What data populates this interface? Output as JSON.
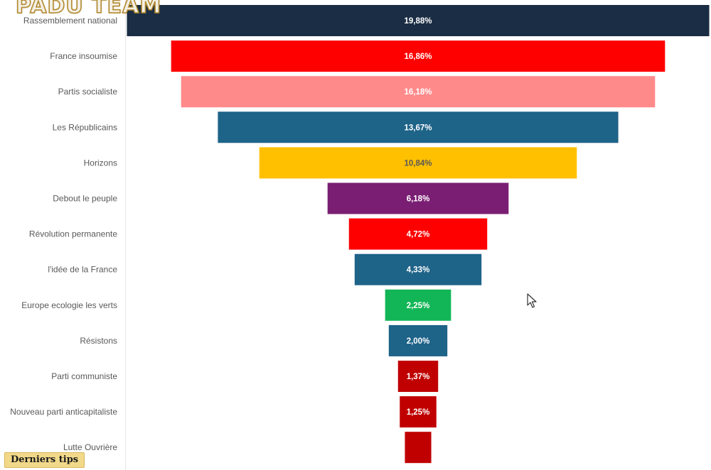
{
  "overlay": {
    "logo_text": "PADU TEAM",
    "badge_text": "Derniers tips"
  },
  "chart_data": {
    "type": "bar",
    "orientation": "horizontal-centered-funnel",
    "categories": [
      "Rassemblement national",
      "France insoumise",
      "Partis socialiste",
      "Les Républicains",
      "Horizons",
      "Debout le peuple",
      "Révolution permanente",
      "l'idée de la France",
      "Europe ecologie les verts",
      "Résistons",
      "Parti communiste",
      "Nouveau parti anticapitaliste",
      "Lutte Ouvrière"
    ],
    "values": [
      19.88,
      16.86,
      16.18,
      13.67,
      10.84,
      6.18,
      4.72,
      4.33,
      2.25,
      2.0,
      1.37,
      1.25,
      0.9
    ],
    "value_labels": [
      "19,88%",
      "16,86%",
      "16,18%",
      "13,67%",
      "10,84%",
      "6,18%",
      "4,72%",
      "4,33%",
      "2,25%",
      "2,00%",
      "1,37%",
      "1,25%",
      ""
    ],
    "colors": [
      "#1b2d44",
      "#fe0000",
      "#ff8a8a",
      "#1e6388",
      "#ffc000",
      "#7a1e73",
      "#fe0000",
      "#1e6388",
      "#12b656",
      "#1e6388",
      "#c00000",
      "#c00000",
      "#c00000"
    ],
    "label_colors": [
      "#ffffff",
      "#ffffff",
      "#ffffff",
      "#ffffff",
      "#595959",
      "#ffffff",
      "#ffffff",
      "#ffffff",
      "#ffffff",
      "#ffffff",
      "#ffffff",
      "#ffffff",
      "#ffffff"
    ]
  }
}
